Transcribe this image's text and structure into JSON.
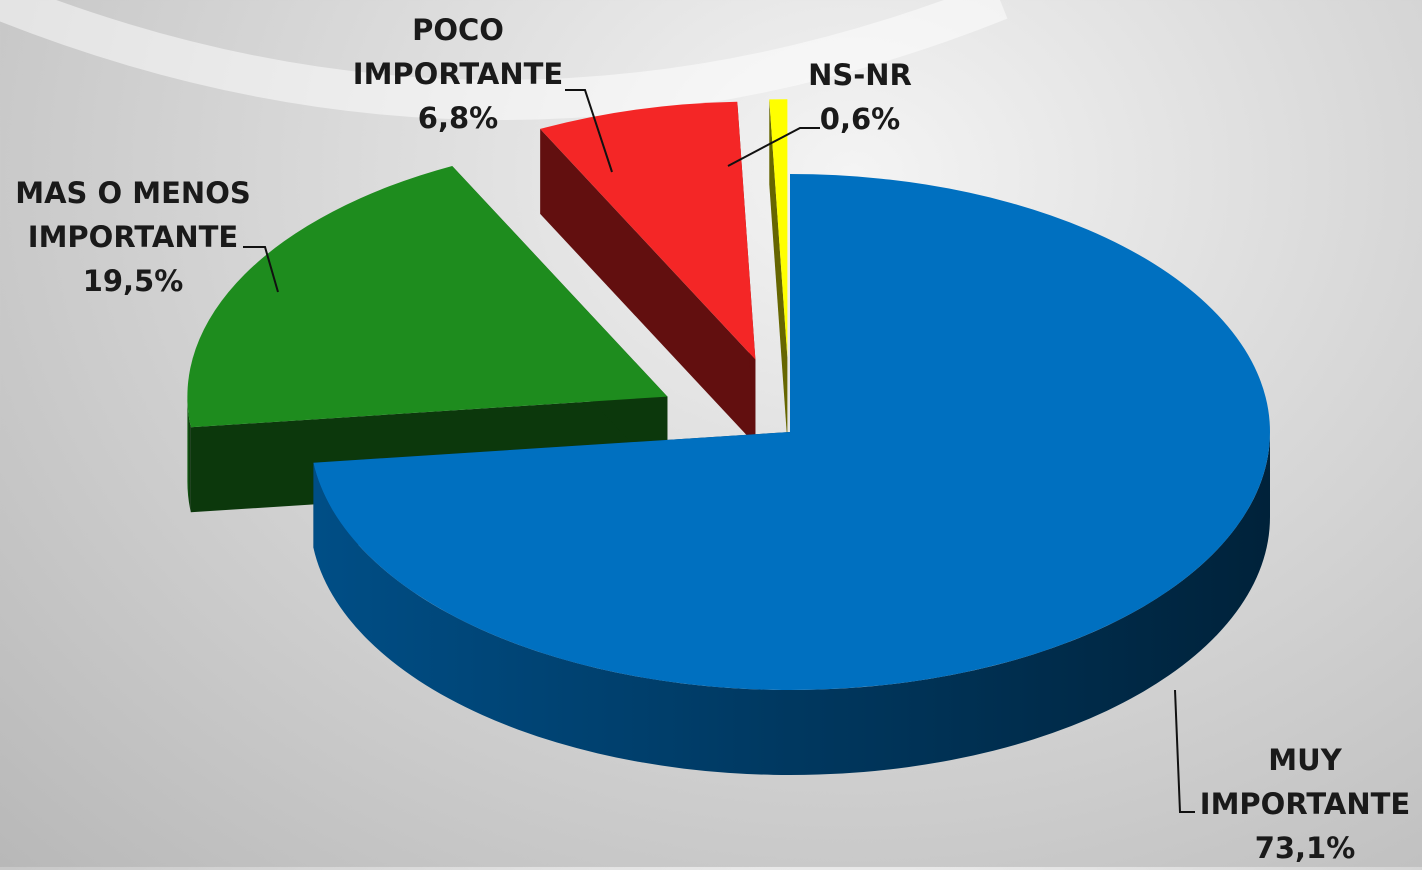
{
  "chart_data": {
    "type": "pie3d",
    "categories": [
      "MUY IMPORTANTE",
      "MAS O MENOS IMPORTANTE",
      "POCO IMPORTANTE",
      "NS-NR"
    ],
    "values": [
      73.1,
      19.5,
      6.8,
      0.6
    ],
    "value_labels": [
      "73,1%",
      "19,5%",
      "6,8%",
      "0,6%"
    ],
    "colors": [
      "#0070c0",
      "#1e8c1e",
      "#f42626",
      "#ffff00"
    ]
  }
}
